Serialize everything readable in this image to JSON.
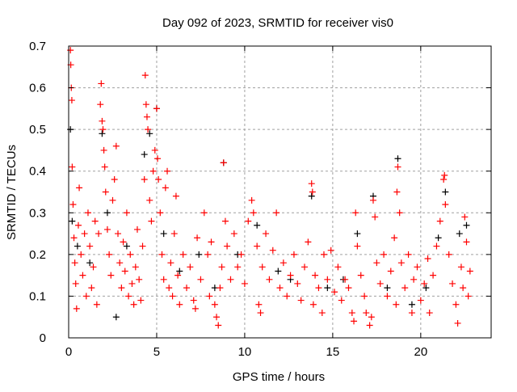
{
  "chart_data": {
    "type": "scatter",
    "title": "Day 092 of 2023, SRMTID for receiver vis0",
    "xlabel": "GPS time / hours",
    "ylabel": "SRMTID / TECUs",
    "xlim": [
      0,
      24
    ],
    "ylim": [
      0,
      0.7
    ],
    "xticks": [
      0,
      5,
      10,
      15,
      20
    ],
    "yticks": [
      0,
      0.1,
      0.2,
      0.3,
      0.4,
      0.5,
      0.6,
      0.7
    ],
    "grid": true,
    "marker": "+",
    "series": [
      {
        "name": "black",
        "color": "#000000",
        "points": [
          [
            0.1,
            0.5
          ],
          [
            0.2,
            0.28
          ],
          [
            0.5,
            0.22
          ],
          [
            1.2,
            0.18
          ],
          [
            1.9,
            0.49
          ],
          [
            2.2,
            0.3
          ],
          [
            2.7,
            0.05
          ],
          [
            3.3,
            0.22
          ],
          [
            4.3,
            0.44
          ],
          [
            4.6,
            0.49
          ],
          [
            5.0,
            0.55
          ],
          [
            5.4,
            0.25
          ],
          [
            6.3,
            0.16
          ],
          [
            7.4,
            0.2
          ],
          [
            8.3,
            0.12
          ],
          [
            8.8,
            0.42
          ],
          [
            9.6,
            0.2
          ],
          [
            10.7,
            0.27
          ],
          [
            11.9,
            0.16
          ],
          [
            12.6,
            0.14
          ],
          [
            13.8,
            0.34
          ],
          [
            14.7,
            0.12
          ],
          [
            15.6,
            0.14
          ],
          [
            16.4,
            0.25
          ],
          [
            17.3,
            0.34
          ],
          [
            18.1,
            0.12
          ],
          [
            18.7,
            0.43
          ],
          [
            19.5,
            0.08
          ],
          [
            20.3,
            0.12
          ],
          [
            21.0,
            0.24
          ],
          [
            21.4,
            0.35
          ],
          [
            22.2,
            0.25
          ],
          [
            22.6,
            0.27
          ]
        ]
      },
      {
        "name": "red",
        "color": "#ff0000",
        "points": [
          [
            0.1,
            0.69
          ],
          [
            0.12,
            0.655
          ],
          [
            0.15,
            0.6
          ],
          [
            0.18,
            0.57
          ],
          [
            0.2,
            0.41
          ],
          [
            0.25,
            0.32
          ],
          [
            0.3,
            0.24
          ],
          [
            0.35,
            0.18
          ],
          [
            0.4,
            0.13
          ],
          [
            0.45,
            0.07
          ],
          [
            0.55,
            0.27
          ],
          [
            0.6,
            0.36
          ],
          [
            0.7,
            0.2
          ],
          [
            0.8,
            0.15
          ],
          [
            0.9,
            0.25
          ],
          [
            1.0,
            0.1
          ],
          [
            1.1,
            0.3
          ],
          [
            1.2,
            0.22
          ],
          [
            1.3,
            0.12
          ],
          [
            1.4,
            0.17
          ],
          [
            1.5,
            0.28
          ],
          [
            1.6,
            0.08
          ],
          [
            1.7,
            0.25
          ],
          [
            1.8,
            0.56
          ],
          [
            1.85,
            0.61
          ],
          [
            1.9,
            0.52
          ],
          [
            1.95,
            0.5
          ],
          [
            2.0,
            0.45
          ],
          [
            2.05,
            0.41
          ],
          [
            2.1,
            0.35
          ],
          [
            2.2,
            0.26
          ],
          [
            2.3,
            0.2
          ],
          [
            2.4,
            0.15
          ],
          [
            2.5,
            0.33
          ],
          [
            2.6,
            0.38
          ],
          [
            2.7,
            0.46
          ],
          [
            2.8,
            0.25
          ],
          [
            2.9,
            0.18
          ],
          [
            3.0,
            0.12
          ],
          [
            3.1,
            0.23
          ],
          [
            3.2,
            0.16
          ],
          [
            3.3,
            0.3
          ],
          [
            3.4,
            0.1
          ],
          [
            3.5,
            0.2
          ],
          [
            3.6,
            0.13
          ],
          [
            3.7,
            0.08
          ],
          [
            3.8,
            0.17
          ],
          [
            3.9,
            0.26
          ],
          [
            4.0,
            0.14
          ],
          [
            4.1,
            0.09
          ],
          [
            4.2,
            0.22
          ],
          [
            4.3,
            0.38
          ],
          [
            4.35,
            0.63
          ],
          [
            4.4,
            0.56
          ],
          [
            4.45,
            0.53
          ],
          [
            4.5,
            0.5
          ],
          [
            4.6,
            0.33
          ],
          [
            4.7,
            0.28
          ],
          [
            4.8,
            0.4
          ],
          [
            4.9,
            0.45
          ],
          [
            5.0,
            0.55
          ],
          [
            5.05,
            0.43
          ],
          [
            5.1,
            0.38
          ],
          [
            5.2,
            0.3
          ],
          [
            5.3,
            0.2
          ],
          [
            5.4,
            0.14
          ],
          [
            5.5,
            0.36
          ],
          [
            5.6,
            0.4
          ],
          [
            5.7,
            0.12
          ],
          [
            5.8,
            0.18
          ],
          [
            5.9,
            0.1
          ],
          [
            6.0,
            0.25
          ],
          [
            6.1,
            0.34
          ],
          [
            6.2,
            0.15
          ],
          [
            6.3,
            0.08
          ],
          [
            6.5,
            0.2
          ],
          [
            6.7,
            0.12
          ],
          [
            6.9,
            0.17
          ],
          [
            7.1,
            0.09
          ],
          [
            7.2,
            0.07
          ],
          [
            7.3,
            0.24
          ],
          [
            7.5,
            0.14
          ],
          [
            7.7,
            0.3
          ],
          [
            7.9,
            0.2
          ],
          [
            8.0,
            0.1
          ],
          [
            8.1,
            0.23
          ],
          [
            8.3,
            0.08
          ],
          [
            8.4,
            0.05
          ],
          [
            8.5,
            0.03
          ],
          [
            8.6,
            0.12
          ],
          [
            8.7,
            0.17
          ],
          [
            8.8,
            0.42
          ],
          [
            8.9,
            0.28
          ],
          [
            9.0,
            0.22
          ],
          [
            9.2,
            0.14
          ],
          [
            9.4,
            0.25
          ],
          [
            9.6,
            0.17
          ],
          [
            9.8,
            0.2
          ],
          [
            10.0,
            0.13
          ],
          [
            10.2,
            0.28
          ],
          [
            10.4,
            0.33
          ],
          [
            10.5,
            0.3
          ],
          [
            10.7,
            0.22
          ],
          [
            10.8,
            0.08
          ],
          [
            10.9,
            0.06
          ],
          [
            11.0,
            0.17
          ],
          [
            11.2,
            0.25
          ],
          [
            11.4,
            0.14
          ],
          [
            11.6,
            0.21
          ],
          [
            11.8,
            0.3
          ],
          [
            12.0,
            0.12
          ],
          [
            12.2,
            0.18
          ],
          [
            12.4,
            0.1
          ],
          [
            12.6,
            0.15
          ],
          [
            12.8,
            0.2
          ],
          [
            13.0,
            0.13
          ],
          [
            13.2,
            0.09
          ],
          [
            13.4,
            0.17
          ],
          [
            13.6,
            0.23
          ],
          [
            13.8,
            0.37
          ],
          [
            13.85,
            0.35
          ],
          [
            13.9,
            0.08
          ],
          [
            14.0,
            0.15
          ],
          [
            14.2,
            0.12
          ],
          [
            14.4,
            0.06
          ],
          [
            14.5,
            0.2
          ],
          [
            14.7,
            0.14
          ],
          [
            14.9,
            0.21
          ],
          [
            15.1,
            0.11
          ],
          [
            15.3,
            0.17
          ],
          [
            15.5,
            0.09
          ],
          [
            15.7,
            0.14
          ],
          [
            15.9,
            0.12
          ],
          [
            16.1,
            0.06
          ],
          [
            16.2,
            0.04
          ],
          [
            16.3,
            0.3
          ],
          [
            16.4,
            0.22
          ],
          [
            16.6,
            0.15
          ],
          [
            16.8,
            0.1
          ],
          [
            16.9,
            0.06
          ],
          [
            17.1,
            0.03
          ],
          [
            17.2,
            0.05
          ],
          [
            17.3,
            0.33
          ],
          [
            17.4,
            0.29
          ],
          [
            17.5,
            0.18
          ],
          [
            17.7,
            0.13
          ],
          [
            17.9,
            0.2
          ],
          [
            18.1,
            0.1
          ],
          [
            18.3,
            0.16
          ],
          [
            18.5,
            0.24
          ],
          [
            18.6,
            0.08
          ],
          [
            18.65,
            0.35
          ],
          [
            18.7,
            0.41
          ],
          [
            18.8,
            0.3
          ],
          [
            18.9,
            0.18
          ],
          [
            19.1,
            0.12
          ],
          [
            19.3,
            0.2
          ],
          [
            19.5,
            0.06
          ],
          [
            19.6,
            0.14
          ],
          [
            19.8,
            0.17
          ],
          [
            20.0,
            0.09
          ],
          [
            20.2,
            0.13
          ],
          [
            20.4,
            0.19
          ],
          [
            20.5,
            0.06
          ],
          [
            20.7,
            0.15
          ],
          [
            20.9,
            0.22
          ],
          [
            21.1,
            0.28
          ],
          [
            21.3,
            0.38
          ],
          [
            21.35,
            0.39
          ],
          [
            21.4,
            0.32
          ],
          [
            21.6,
            0.2
          ],
          [
            21.8,
            0.13
          ],
          [
            22.0,
            0.08
          ],
          [
            22.1,
            0.035
          ],
          [
            22.3,
            0.17
          ],
          [
            22.4,
            0.12
          ],
          [
            22.5,
            0.29
          ],
          [
            22.6,
            0.23
          ],
          [
            22.7,
            0.1
          ],
          [
            22.8,
            0.16
          ]
        ]
      }
    ]
  }
}
